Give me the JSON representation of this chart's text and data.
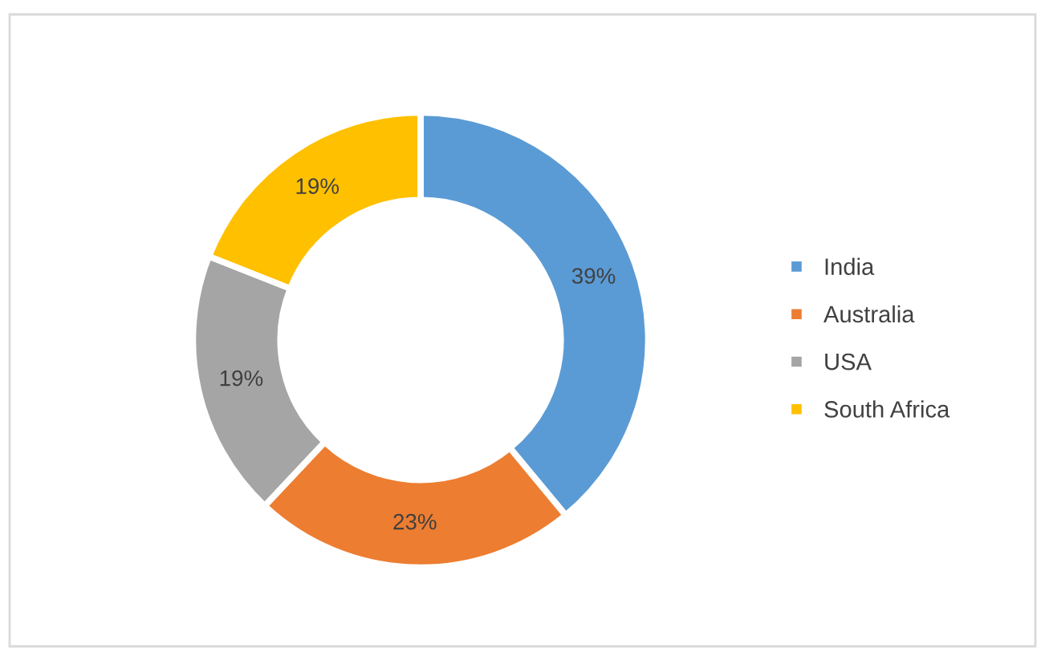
{
  "chart_data": {
    "type": "donut",
    "categories": [
      "India",
      "Australia",
      "USA",
      "South Africa"
    ],
    "values": [
      39,
      23,
      19,
      19
    ],
    "colors": [
      "#5b9bd5",
      "#ed7d31",
      "#a5a5a5",
      "#ffc000"
    ],
    "value_labels": [
      "39%",
      "23%",
      "19%",
      "19%"
    ],
    "legend": "right"
  }
}
